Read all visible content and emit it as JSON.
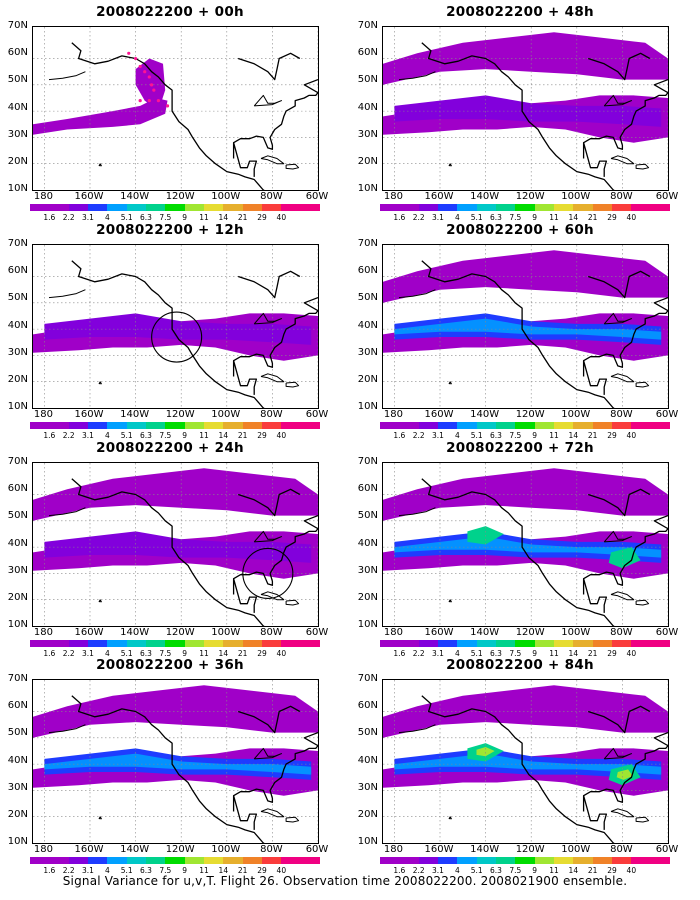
{
  "figure": {
    "caption": "Signal Variance for u,v,T. Flight 26. Observation time 2008022200. 2008021900 ensemble.",
    "lat_labels": [
      "70N",
      "60N",
      "50N",
      "40N",
      "30N",
      "20N",
      "10N"
    ],
    "lon_labels": [
      "180",
      "160W",
      "140W",
      "120W",
      "100W",
      "80W",
      "60W"
    ],
    "colorbar_labels": [
      "1.6",
      "2.2",
      "3.1",
      "4",
      "5.1",
      "6.3",
      "7.5",
      "9",
      "11",
      "14",
      "21",
      "29",
      "40"
    ],
    "colorbar_colors": [
      "#a000c8",
      "#8200dc",
      "#1e3cff",
      "#00a0ff",
      "#00c8c8",
      "#00d28c",
      "#00dc00",
      "#a0e632",
      "#e6dc32",
      "#e6af2d",
      "#f08228",
      "#fa3c3c",
      "#f00082"
    ],
    "coastline_color": "#000000"
  },
  "panels": [
    {
      "title": "2008022200 + 00h",
      "level": 0,
      "circle": null,
      "dots": true
    },
    {
      "title": "2008022200 + 12h",
      "level": 1,
      "circle": "west",
      "dots": false
    },
    {
      "title": "2008022200 + 24h",
      "level": 2,
      "circle": "east",
      "dots": false
    },
    {
      "title": "2008022200 + 36h",
      "level": 3,
      "circle": null,
      "dots": false
    },
    {
      "title": "2008022200 + 48h",
      "level": 2,
      "circle": null,
      "dots": false
    },
    {
      "title": "2008022200 + 60h",
      "level": 3,
      "circle": null,
      "dots": false
    },
    {
      "title": "2008022200 + 72h",
      "level": 4,
      "circle": null,
      "dots": false
    },
    {
      "title": "2008022200 + 84h",
      "level": 5,
      "circle": null,
      "dots": false
    }
  ]
}
